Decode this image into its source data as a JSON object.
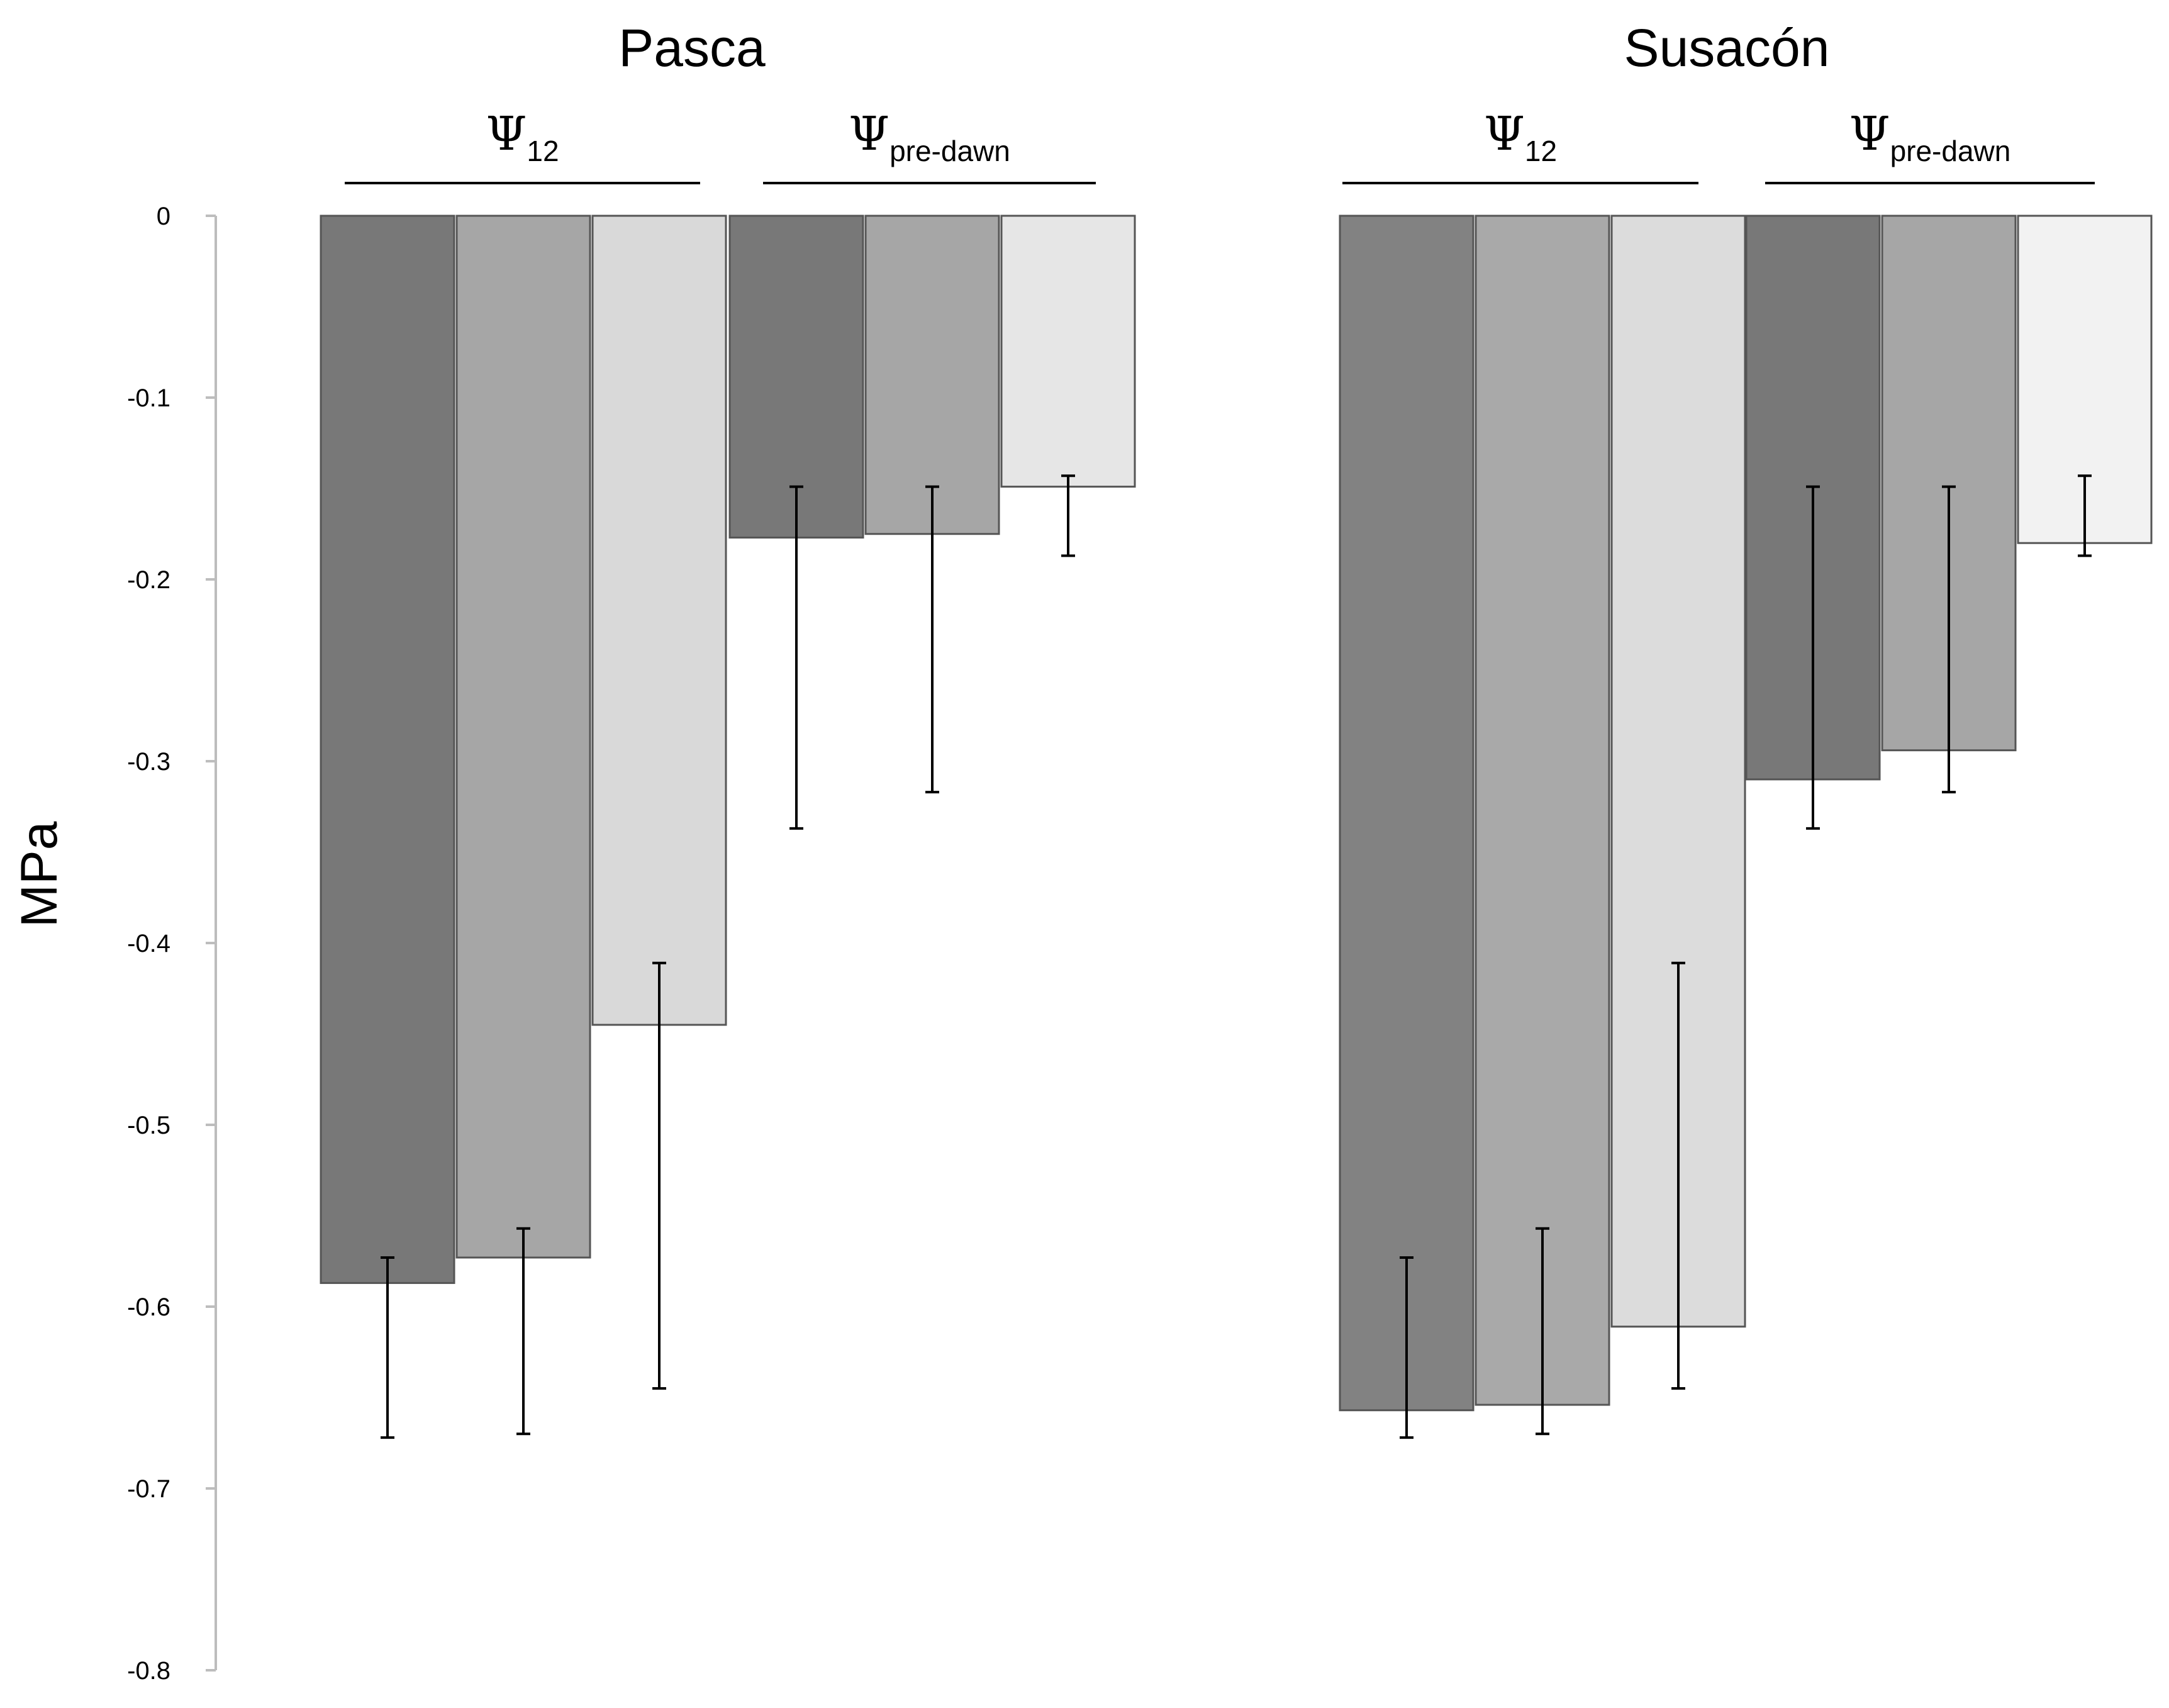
{
  "chart_data": {
    "type": "bar",
    "ylabel": "MPa",
    "ylim": [
      -0.8,
      0
    ],
    "yticks": [
      "0",
      "-0.1",
      "-0.2",
      "-0.3",
      "-0.4",
      "-0.5",
      "-0.6",
      "-0.7",
      "-0.8"
    ],
    "grid": false,
    "legend": "none",
    "panels": [
      {
        "site": "Pasca",
        "groups": [
          {
            "label": "Ψ",
            "subscript": "12",
            "bars": [
              {
                "value": -0.587,
                "err_low": -0.672,
                "err_high": -0.573,
                "color": "#787878"
              },
              {
                "value": -0.573,
                "err_low": -0.67,
                "err_high": -0.557,
                "color": "#a6a6a6"
              },
              {
                "value": -0.445,
                "err_low": -0.645,
                "err_high": -0.411,
                "color": "#d9d9d9"
              }
            ]
          },
          {
            "label": "Ψ",
            "subscript": "pre-dawn",
            "bars": [
              {
                "value": -0.177,
                "err_low": -0.337,
                "err_high": -0.149,
                "color": "#787878"
              },
              {
                "value": -0.175,
                "err_low": -0.317,
                "err_high": -0.149,
                "color": "#a6a6a6"
              },
              {
                "value": -0.149,
                "err_low": -0.187,
                "err_high": -0.143,
                "color": "#e6e6e6"
              }
            ]
          }
        ]
      },
      {
        "site": "Susacón",
        "groups": [
          {
            "label": "Ψ",
            "subscript": "12",
            "bars": [
              {
                "value": -0.657,
                "err_low": -0.672,
                "err_high": -0.573,
                "color": "#828282"
              },
              {
                "value": -0.654,
                "err_low": -0.67,
                "err_high": -0.557,
                "color": "#a9a9a9"
              },
              {
                "value": -0.611,
                "err_low": -0.645,
                "err_high": -0.411,
                "color": "#dcdcdc"
              }
            ]
          },
          {
            "label": "Ψ",
            "subscript": "pre-dawn",
            "bars": [
              {
                "value": -0.31,
                "err_low": -0.337,
                "err_high": -0.149,
                "color": "#787878"
              },
              {
                "value": -0.294,
                "err_low": -0.317,
                "err_high": -0.149,
                "color": "#a6a6a6"
              },
              {
                "value": -0.18,
                "err_low": -0.187,
                "err_high": -0.143,
                "color": "#f2f2f2"
              }
            ]
          }
        ]
      }
    ]
  }
}
